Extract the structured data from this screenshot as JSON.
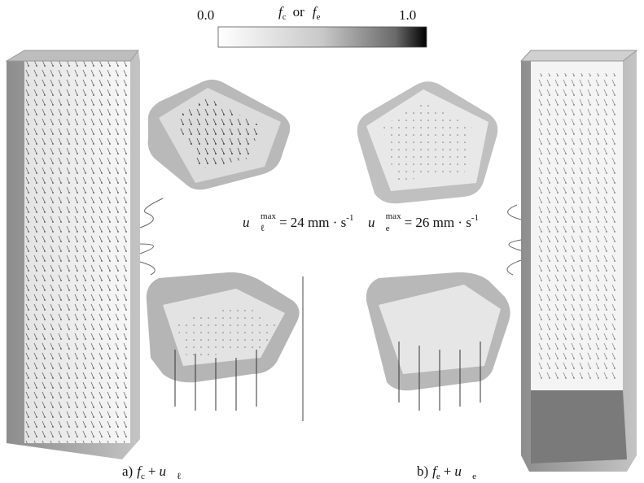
{
  "colorbar": {
    "min": "0.0",
    "max": "1.0",
    "label": {
      "first": "f",
      "first_sub": "c",
      "joiner": "or",
      "second": "f",
      "second_sub": "e"
    }
  },
  "panels": [
    {
      "caption": {
        "prefix": "a)",
        "field": "f",
        "field_sub": "c",
        "plus": "+",
        "vector": "u⃗",
        "vector_sub": "ℓ"
      },
      "velocity": {
        "vector": "u⃗",
        "sub": "ℓ",
        "sup": "max",
        "value": "= 24 mm · s",
        "exponent": "-1"
      }
    },
    {
      "caption": {
        "prefix": "b)",
        "field": "f",
        "field_sub": "e",
        "plus": "+",
        "vector": "u⃗",
        "vector_sub": "e"
      },
      "velocity": {
        "vector": "u⃗",
        "sub": "e",
        "sup": "max",
        "value": "= 26 mm · s",
        "exponent": "-1"
      }
    }
  ]
}
